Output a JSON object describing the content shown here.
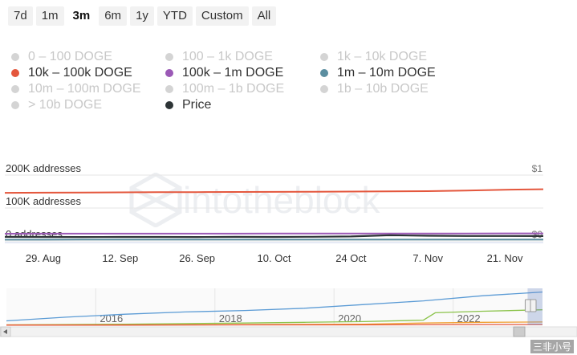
{
  "range_selector": {
    "buttons": [
      "7d",
      "1m",
      "3m",
      "6m",
      "1y",
      "YTD",
      "Custom",
      "All"
    ],
    "active": "3m"
  },
  "legend": [
    {
      "label": "0 – 100 DOGE",
      "enabled": false,
      "color": "#d4d4d4"
    },
    {
      "label": "100 – 1k DOGE",
      "enabled": false,
      "color": "#d4d4d4"
    },
    {
      "label": "1k – 10k DOGE",
      "enabled": false,
      "color": "#d4d4d4"
    },
    {
      "label": "10k – 100k DOGE",
      "enabled": true,
      "color": "#e4573d"
    },
    {
      "label": "100k – 1m DOGE",
      "enabled": true,
      "color": "#9b59b6"
    },
    {
      "label": "1m – 10m DOGE",
      "enabled": true,
      "color": "#5b8ea0"
    },
    {
      "label": "10m – 100m DOGE",
      "enabled": false,
      "color": "#d4d4d4"
    },
    {
      "label": "100m – 1b DOGE",
      "enabled": false,
      "color": "#d4d4d4"
    },
    {
      "label": "1b – 10b DOGE",
      "enabled": false,
      "color": "#d4d4d4"
    },
    {
      "label": "> 10b DOGE",
      "enabled": false,
      "color": "#d4d4d4"
    },
    {
      "label": "Price",
      "enabled": true,
      "color": "#2d3436"
    }
  ],
  "watermark": "intotheblock",
  "corner_mark": "三非小号",
  "chart_data": {
    "type": "line",
    "x": [
      "22 Aug",
      "29 Aug",
      "5 Sep",
      "12 Sep",
      "19 Sep",
      "26 Sep",
      "3 Oct",
      "10 Oct",
      "17 Oct",
      "24 Oct",
      "31 Oct",
      "7 Nov",
      "14 Nov",
      "21 Nov",
      "23 Nov"
    ],
    "x_tick_labels": [
      "29. Aug",
      "12. Sep",
      "26. Sep",
      "10. Oct",
      "24 Oct",
      "7. Nov",
      "21. Nov"
    ],
    "y_left_ticks": [
      "0 addresses",
      "100K addresses",
      "200K addresses"
    ],
    "y_left_range": [
      0,
      200000
    ],
    "y_right_ticks": [
      "$0",
      "$1"
    ],
    "y_right_range": [
      0,
      1
    ],
    "series": [
      {
        "name": "10k – 100k DOGE",
        "axis": "left",
        "color": "#e4573d",
        "values": [
          146000,
          146500,
          147000,
          147500,
          148000,
          148300,
          148700,
          149000,
          149400,
          150000,
          150500,
          151200,
          153000,
          155500,
          157000
        ]
      },
      {
        "name": "100k – 1m DOGE",
        "axis": "left",
        "color": "#9b59b6",
        "values": [
          22000,
          22100,
          22100,
          22200,
          22200,
          22300,
          22300,
          22400,
          22400,
          22500,
          22600,
          22700,
          22800,
          22900,
          23000
        ]
      },
      {
        "name": "1m – 10m DOGE",
        "axis": "left",
        "color": "#5b8ea0",
        "values": [
          4000,
          4000,
          4050,
          4050,
          4100,
          4100,
          4100,
          4150,
          4150,
          4200,
          4250,
          4300,
          4300,
          4350,
          4350
        ]
      },
      {
        "name": "Price",
        "axis": "right",
        "color": "#2d3436",
        "values": [
          0.062,
          0.061,
          0.06,
          0.061,
          0.061,
          0.06,
          0.062,
          0.061,
          0.063,
          0.068,
          0.086,
          0.079,
          0.075,
          0.075,
          0.074
        ]
      }
    ],
    "navigator": {
      "x_tick_labels": [
        "2016",
        "2018",
        "2020",
        "2022"
      ],
      "x_range": [
        2014,
        2023
      ],
      "series": [
        {
          "color": "#5b9bd5",
          "x": [
            2014,
            2015,
            2016,
            2017,
            2018,
            2019,
            2020,
            2021,
            2022,
            2023
          ],
          "values": [
            0.12,
            0.22,
            0.3,
            0.36,
            0.4,
            0.46,
            0.56,
            0.66,
            0.8,
            0.9
          ]
        },
        {
          "color": "#8bc34a",
          "x": [
            2014,
            2016,
            2018,
            2019,
            2020,
            2021,
            2021.2,
            2022,
            2023
          ],
          "values": [
            0.01,
            0.03,
            0.06,
            0.08,
            0.1,
            0.14,
            0.34,
            0.38,
            0.42
          ]
        },
        {
          "color": "#f0a030",
          "x": [
            2014,
            2016,
            2018,
            2020,
            2021,
            2022,
            2023
          ],
          "values": [
            0.01,
            0.01,
            0.02,
            0.03,
            0.06,
            0.08,
            0.09
          ]
        },
        {
          "color": "#e4573d",
          "x": [
            2014,
            2016,
            2018,
            2020,
            2022,
            2023
          ],
          "values": [
            0.005,
            0.005,
            0.01,
            0.01,
            0.02,
            0.02
          ]
        }
      ]
    }
  }
}
